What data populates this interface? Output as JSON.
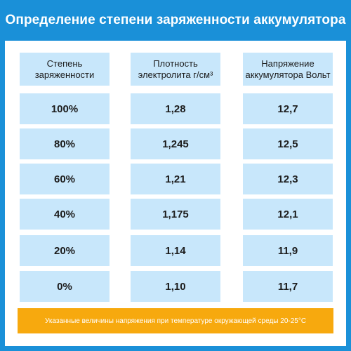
{
  "title": "Определение степени заряженности аккумулятора",
  "columns": [
    {
      "header": "Степень\nзаряженности",
      "values": [
        "100%",
        "80%",
        "60%",
        "40%",
        "20%",
        "0%"
      ]
    },
    {
      "header": "Плотность\nэлектролита г/см³",
      "values": [
        "1,28",
        "1,245",
        "1,21",
        "1,175",
        "1,14",
        "1,10"
      ]
    },
    {
      "header": "Напряжение\nаккумулятора Вольт",
      "values": [
        "12,7",
        "12,5",
        "12,3",
        "12,1",
        "11,9",
        "11,7"
      ]
    }
  ],
  "footnote": "Указанные величины напряжения при температуре окружающей среды 20-25°C",
  "colors": {
    "frame": "#1a90d8",
    "cell": "#c8e7fb",
    "footer": "#f7a90e"
  }
}
